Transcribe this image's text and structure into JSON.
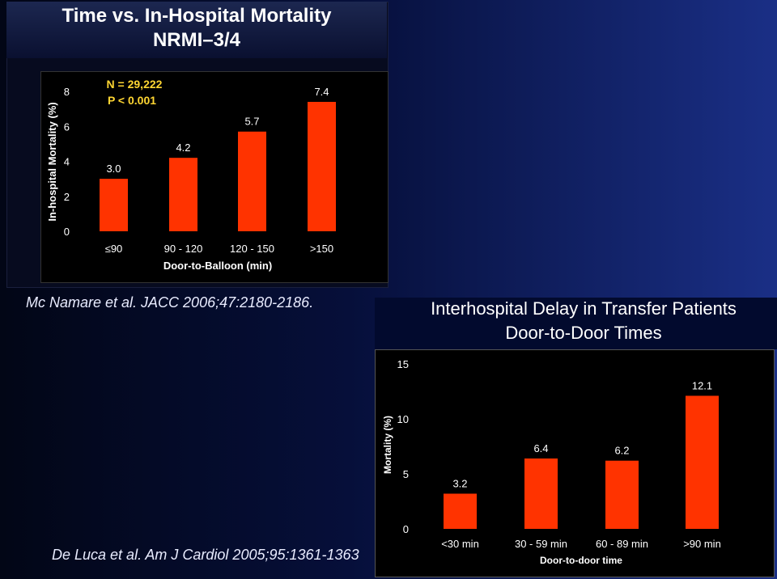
{
  "chart_data": [
    {
      "type": "bar",
      "title": "Time vs. In-Hospital Mortality",
      "subtitle": "NRMI–3/4",
      "categories": [
        "≤90",
        "90 - 120",
        "120 - 150",
        ">150"
      ],
      "values": [
        3.0,
        4.2,
        5.7,
        7.4
      ],
      "value_labels": [
        "3.0",
        "4.2",
        "5.7",
        "7.4"
      ],
      "xlabel": "Door-to-Balloon (min)",
      "ylabel": "In-hospital Mortality (%)",
      "ylim": [
        0,
        8
      ],
      "yticks": [
        "0",
        "2",
        "4",
        "6",
        "8"
      ],
      "annotation_line1": "N = 29,222",
      "annotation_line2": "P < 0.001",
      "bar_color": "#ff3300",
      "citation": "Mc Namare et al. JACC 2006;47:2180-2186."
    },
    {
      "type": "bar",
      "title": "Interhospital Delay in Transfer Patients",
      "subtitle": "Door-to-Door Times",
      "categories": [
        "<30 min",
        "30 - 59 min",
        "60 - 89 min",
        ">90 min"
      ],
      "values": [
        3.2,
        6.4,
        6.2,
        12.1
      ],
      "value_labels": [
        "3.2",
        "6.4",
        "6.2",
        "12.1"
      ],
      "xlabel": "Door-to-door time",
      "ylabel": "Mortality (%)",
      "ylim": [
        0,
        15
      ],
      "yticks": [
        "0",
        "5",
        "10",
        "15"
      ],
      "bar_color": "#ff3300",
      "citation": "De Luca et al. Am J Cardiol 2005;95:1361-1363"
    }
  ]
}
